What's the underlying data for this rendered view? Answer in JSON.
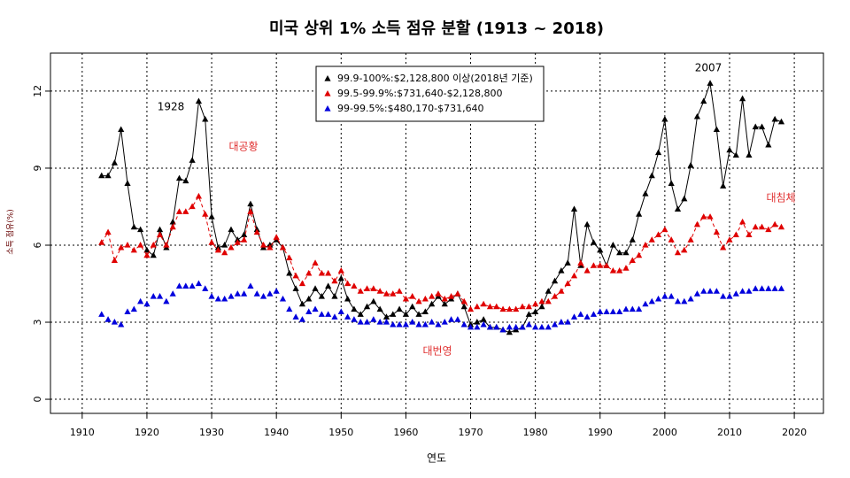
{
  "chart_data": {
    "type": "scatter",
    "title": "미국 상위 1% 소득 점유 분할 (1913 ~ 2018)",
    "xlabel": "연도",
    "ylabel": "소득 점유(%)",
    "xlim": [
      1905.1,
      2024.5
    ],
    "ylim": [
      -0.55,
      13.48
    ],
    "xticks": [
      1910,
      1920,
      1930,
      1940,
      1950,
      1960,
      1970,
      1980,
      1990,
      2000,
      2010,
      2020
    ],
    "yticks": [
      0,
      3,
      6,
      9,
      12
    ],
    "grid": true,
    "legend": "top",
    "x": [
      1913,
      1914,
      1915,
      1916,
      1917,
      1918,
      1919,
      1920,
      1921,
      1922,
      1923,
      1924,
      1925,
      1926,
      1927,
      1928,
      1929,
      1930,
      1931,
      1932,
      1933,
      1934,
      1935,
      1936,
      1937,
      1938,
      1939,
      1940,
      1941,
      1942,
      1943,
      1944,
      1945,
      1946,
      1947,
      1948,
      1949,
      1950,
      1951,
      1952,
      1953,
      1954,
      1955,
      1956,
      1957,
      1958,
      1959,
      1960,
      1961,
      1962,
      1963,
      1964,
      1965,
      1966,
      1967,
      1968,
      1969,
      1970,
      1971,
      1972,
      1973,
      1974,
      1975,
      1976,
      1977,
      1978,
      1979,
      1980,
      1981,
      1982,
      1983,
      1984,
      1985,
      1986,
      1987,
      1988,
      1989,
      1990,
      1991,
      1992,
      1993,
      1994,
      1995,
      1996,
      1997,
      1998,
      1999,
      2000,
      2001,
      2002,
      2003,
      2004,
      2005,
      2006,
      2007,
      2008,
      2009,
      2010,
      2011,
      2012,
      2013,
      2014,
      2015,
      2016,
      2017,
      2018
    ],
    "series": [
      {
        "name": "99.9-100%:$2,128,800 이상(2018년 기준)",
        "color": "#000000",
        "line": "solid",
        "values": [
          8.7,
          8.7,
          9.2,
          10.5,
          8.4,
          6.7,
          6.6,
          5.8,
          5.6,
          6.6,
          5.9,
          6.9,
          8.6,
          8.5,
          9.3,
          11.6,
          10.9,
          7.1,
          5.9,
          6.0,
          6.6,
          6.2,
          6.4,
          7.6,
          6.6,
          5.9,
          6.0,
          6.2,
          5.9,
          4.9,
          4.3,
          3.7,
          3.9,
          4.3,
          4.0,
          4.4,
          4.0,
          4.7,
          3.9,
          3.5,
          3.3,
          3.6,
          3.8,
          3.5,
          3.2,
          3.3,
          3.5,
          3.3,
          3.6,
          3.3,
          3.4,
          3.7,
          4.0,
          3.7,
          3.9,
          4.1,
          3.6,
          2.9,
          3.0,
          3.1,
          2.8,
          2.8,
          2.7,
          2.6,
          2.7,
          2.8,
          3.3,
          3.4,
          3.6,
          4.2,
          4.6,
          5.0,
          5.3,
          7.4,
          5.2,
          6.8,
          6.1,
          5.8,
          5.2,
          6.0,
          5.7,
          5.7,
          6.2,
          7.2,
          8.0,
          8.7,
          9.6,
          10.9,
          8.4,
          7.4,
          7.8,
          9.1,
          11.0,
          11.6,
          12.3,
          10.5,
          8.3,
          9.7,
          9.5,
          11.7,
          9.5,
          10.6,
          10.6,
          9.9,
          10.9,
          10.8
        ]
      },
      {
        "name": "99.5-99.9%:$731,640-$2,128,800",
        "color": "#e00000",
        "line": "dashed",
        "values": [
          6.1,
          6.5,
          5.4,
          5.9,
          6.0,
          5.8,
          6.0,
          5.6,
          6.0,
          6.4,
          6.0,
          6.7,
          7.3,
          7.3,
          7.5,
          7.9,
          7.2,
          6.1,
          5.8,
          5.7,
          5.9,
          6.1,
          6.2,
          7.3,
          6.5,
          6.0,
          5.9,
          6.3,
          5.9,
          5.5,
          4.8,
          4.5,
          4.9,
          5.3,
          4.9,
          4.9,
          4.6,
          5.0,
          4.5,
          4.4,
          4.2,
          4.3,
          4.3,
          4.2,
          4.1,
          4.1,
          4.2,
          3.9,
          4.0,
          3.8,
          3.9,
          4.0,
          4.1,
          3.9,
          4.0,
          4.1,
          3.8,
          3.5,
          3.6,
          3.7,
          3.6,
          3.6,
          3.5,
          3.5,
          3.5,
          3.6,
          3.6,
          3.7,
          3.8,
          3.8,
          4.0,
          4.2,
          4.5,
          4.8,
          5.3,
          5.0,
          5.2,
          5.2,
          5.2,
          5.0,
          5.0,
          5.1,
          5.4,
          5.6,
          6.0,
          6.2,
          6.4,
          6.6,
          6.2,
          5.7,
          5.8,
          6.2,
          6.8,
          7.1,
          7.1,
          6.5,
          5.9,
          6.2,
          6.4,
          6.9,
          6.4,
          6.7,
          6.7,
          6.6,
          6.8,
          6.7
        ]
      },
      {
        "name": "99-99.5%:$480,170-$731,640",
        "color": "#0000dd",
        "values": [
          3.3,
          3.1,
          3.0,
          2.9,
          3.4,
          3.5,
          3.8,
          3.7,
          4.0,
          4.0,
          3.8,
          4.1,
          4.4,
          4.4,
          4.4,
          4.5,
          4.3,
          4.0,
          3.9,
          3.9,
          4.0,
          4.1,
          4.1,
          4.4,
          4.1,
          4.0,
          4.1,
          4.2,
          3.9,
          3.5,
          3.2,
          3.1,
          3.4,
          3.5,
          3.3,
          3.3,
          3.2,
          3.4,
          3.2,
          3.1,
          3.0,
          3.0,
          3.1,
          3.0,
          3.0,
          2.9,
          2.9,
          2.9,
          3.0,
          2.9,
          2.9,
          3.0,
          2.9,
          3.0,
          3.1,
          3.1,
          2.9,
          2.8,
          2.8,
          2.9,
          2.8,
          2.8,
          2.7,
          2.8,
          2.8,
          2.8,
          2.9,
          2.8,
          2.8,
          2.8,
          2.9,
          3.0,
          3.0,
          3.2,
          3.3,
          3.2,
          3.3,
          3.4,
          3.4,
          3.4,
          3.4,
          3.5,
          3.5,
          3.5,
          3.7,
          3.8,
          3.9,
          4.0,
          4.0,
          3.8,
          3.8,
          3.9,
          4.1,
          4.2,
          4.2,
          4.2,
          4.0,
          4.0,
          4.1,
          4.2,
          4.2,
          4.3,
          4.3,
          4.3,
          4.3,
          4.3
        ]
      }
    ],
    "annotations": [
      {
        "text": "1928",
        "color": "#000000"
      },
      {
        "text": "2007",
        "color": "#000000"
      },
      {
        "text": "대공황",
        "color": "#e03030"
      },
      {
        "text": "대침체",
        "color": "#e03030"
      },
      {
        "text": "대번영",
        "color": "#e03030"
      }
    ]
  }
}
